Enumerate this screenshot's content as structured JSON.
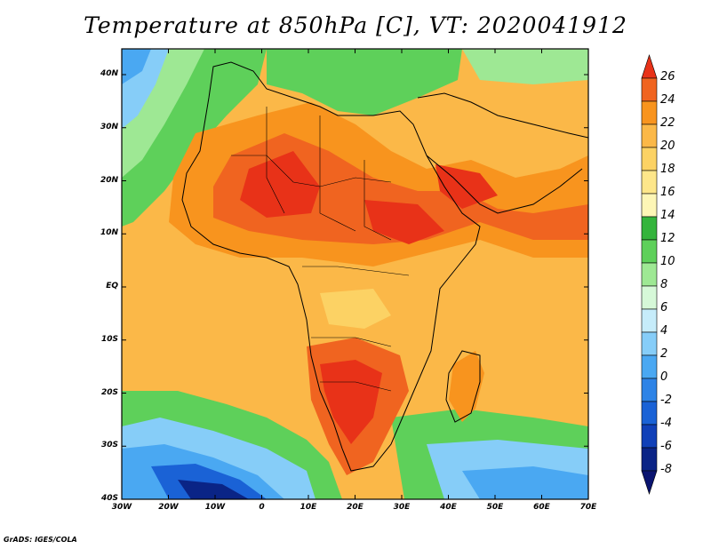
{
  "title": "Temperature at 850hPa [C], VT: 2020041912",
  "credit": "GrADS: IGES/COLA",
  "map": {
    "lon_ticks": [
      "30W",
      "20W",
      "10W",
      "0",
      "10E",
      "20E",
      "30E",
      "40E",
      "50E",
      "60E",
      "70E"
    ],
    "lat_ticks": [
      "40N",
      "30N",
      "20N",
      "10N",
      "EQ",
      "10S",
      "20S",
      "30S",
      "40S"
    ]
  },
  "colorbar": {
    "labels": [
      "26",
      "24",
      "22",
      "20",
      "18",
      "16",
      "14",
      "12",
      "10",
      "8",
      "6",
      "4",
      "2",
      "0",
      "-2",
      "-4",
      "-6",
      "-8"
    ],
    "colors": [
      "#e83218",
      "#f06420",
      "#f8941e",
      "#fbb848",
      "#fcd264",
      "#fde68a",
      "#fdf6b6",
      "#34b43c",
      "#5ed05a",
      "#9ee894",
      "#d6f8d8",
      "#c6ecfa",
      "#86cdf8",
      "#4aa8f2",
      "#2d83e6",
      "#1a62d6",
      "#1040b8",
      "#0a2486",
      "#0a1470"
    ]
  }
}
